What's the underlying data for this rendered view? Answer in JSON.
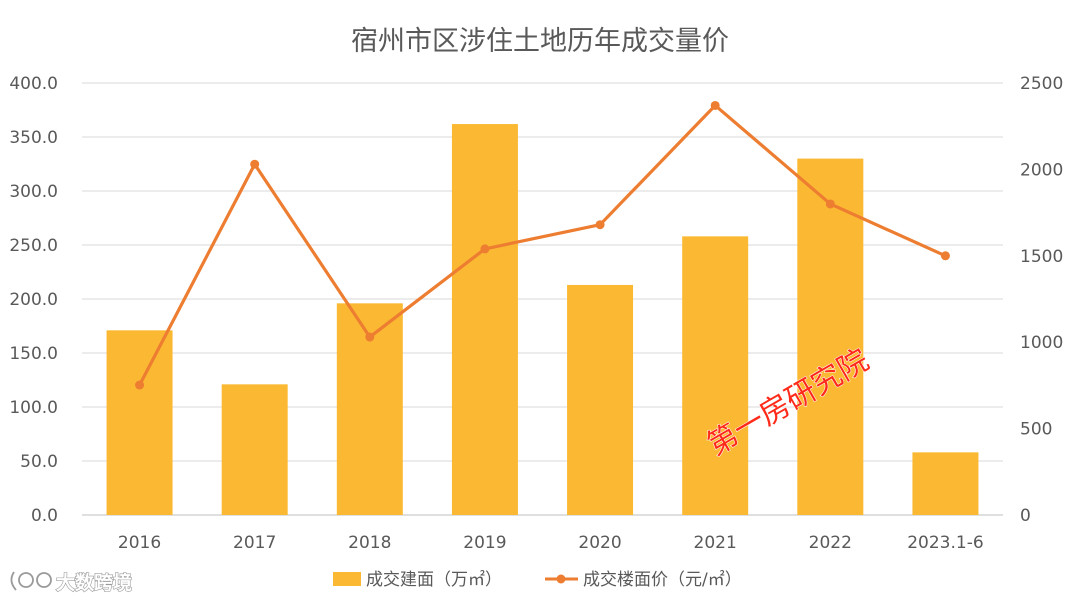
{
  "chart_data": {
    "type": "bar",
    "title": "宿州市区涉住土地历年成交量价",
    "categories": [
      "2016",
      "2017",
      "2018",
      "2019",
      "2020",
      "2021",
      "2022",
      "2023.1-6"
    ],
    "series": [
      {
        "name": "成交建面（万㎡）",
        "type": "bar",
        "axis": "left",
        "color": "#fbb933",
        "values": [
          171,
          121,
          196,
          362,
          213,
          258,
          330,
          58
        ]
      },
      {
        "name": "成交楼面价（元/㎡）",
        "type": "line",
        "axis": "right",
        "color": "#ed7d31",
        "values": [
          752,
          2030,
          1030,
          1540,
          1680,
          2370,
          1800,
          1500
        ]
      }
    ],
    "left_axis": {
      "ylim": [
        0,
        400
      ],
      "ticks": [
        "0.0",
        "50.0",
        "100.0",
        "150.0",
        "200.0",
        "250.0",
        "300.0",
        "350.0",
        "400.0"
      ]
    },
    "right_axis": {
      "ylim": [
        0,
        2500
      ],
      "ticks": [
        "0",
        "500",
        "1000",
        "1500",
        "2000",
        "2500"
      ]
    },
    "grid": true,
    "legend_position": "bottom"
  },
  "watermark": {
    "text": "第一房研究院"
  },
  "logo": {
    "text": "大数跨境"
  }
}
